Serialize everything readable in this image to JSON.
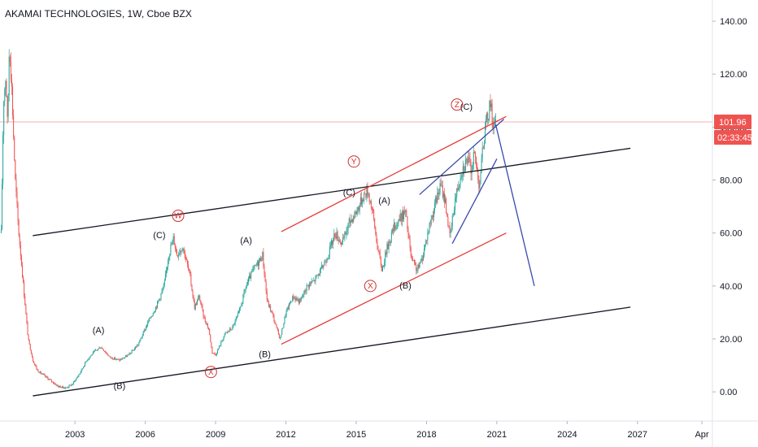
{
  "chart_data": {
    "type": "candlestick",
    "title": "AKAMAI TECHNOLOGIES, 1W, Cboe BZX",
    "symbol": "AKAMAI TECHNOLOGIES",
    "interval": "1W",
    "exchange": "Cboe BZX",
    "xlim": [
      1999.8,
      2030.2
    ],
    "ylim": [
      -11,
      148
    ],
    "y_ticks": [
      0,
      20,
      40,
      60,
      80,
      100,
      120,
      140
    ],
    "y_tick_labels": [
      "0.00",
      "20.00",
      "40.00",
      "60.00",
      "80.00",
      "100.00",
      "120.00",
      "140.00"
    ],
    "x_ticks": [
      2003,
      2006,
      2009,
      2012,
      2015,
      2018,
      2021,
      2024,
      2027,
      2029.75
    ],
    "x_tick_labels": [
      "2003",
      "2006",
      "2009",
      "2012",
      "2015",
      "2018",
      "2021",
      "2024",
      "2027",
      "Apr"
    ],
    "price_anchors": [
      [
        1999.85,
        60
      ],
      [
        1999.95,
        110
      ],
      [
        2000.05,
        120
      ],
      [
        2000.12,
        100
      ],
      [
        2000.2,
        132
      ],
      [
        2000.3,
        115
      ],
      [
        2000.45,
        80
      ],
      [
        2000.6,
        60
      ],
      [
        2000.8,
        40
      ],
      [
        2001.0,
        20
      ],
      [
        2001.2,
        12
      ],
      [
        2001.4,
        8
      ],
      [
        2001.7,
        6
      ],
      [
        2002.0,
        4
      ],
      [
        2002.3,
        2
      ],
      [
        2002.6,
        1.5
      ],
      [
        2002.9,
        3
      ],
      [
        2003.2,
        7
      ],
      [
        2003.5,
        12
      ],
      [
        2003.8,
        15
      ],
      [
        2004.1,
        17
      ],
      [
        2004.5,
        13
      ],
      [
        2004.9,
        12
      ],
      [
        2005.3,
        14
      ],
      [
        2005.7,
        18
      ],
      [
        2006.1,
        26
      ],
      [
        2006.5,
        33
      ],
      [
        2006.8,
        40
      ],
      [
        2007.0,
        52
      ],
      [
        2007.2,
        58
      ],
      [
        2007.35,
        52
      ],
      [
        2007.6,
        55
      ],
      [
        2007.9,
        44
      ],
      [
        2008.1,
        32
      ],
      [
        2008.3,
        36
      ],
      [
        2008.5,
        28
      ],
      [
        2008.7,
        24
      ],
      [
        2008.85,
        15
      ],
      [
        2009.0,
        14
      ],
      [
        2009.2,
        18
      ],
      [
        2009.4,
        22
      ],
      [
        2009.7,
        24
      ],
      [
        2010.0,
        30
      ],
      [
        2010.3,
        40
      ],
      [
        2010.6,
        46
      ],
      [
        2010.9,
        50
      ],
      [
        2011.0,
        52
      ],
      [
        2011.2,
        34
      ],
      [
        2011.4,
        30
      ],
      [
        2011.6,
        24
      ],
      [
        2011.75,
        20
      ],
      [
        2012.0,
        30
      ],
      [
        2012.3,
        36
      ],
      [
        2012.6,
        34
      ],
      [
        2012.9,
        40
      ],
      [
        2013.2,
        42
      ],
      [
        2013.5,
        46
      ],
      [
        2013.8,
        52
      ],
      [
        2014.1,
        60
      ],
      [
        2014.4,
        56
      ],
      [
        2014.7,
        64
      ],
      [
        2015.0,
        68
      ],
      [
        2015.3,
        74
      ],
      [
        2015.5,
        76
      ],
      [
        2015.7,
        68
      ],
      [
        2015.9,
        55
      ],
      [
        2016.1,
        46
      ],
      [
        2016.3,
        54
      ],
      [
        2016.6,
        62
      ],
      [
        2016.9,
        66
      ],
      [
        2017.1,
        68
      ],
      [
        2017.35,
        50
      ],
      [
        2017.6,
        46
      ],
      [
        2017.8,
        50
      ],
      [
        2018.1,
        62
      ],
      [
        2018.4,
        72
      ],
      [
        2018.6,
        78
      ],
      [
        2018.8,
        72
      ],
      [
        2019.0,
        58
      ],
      [
        2019.2,
        72
      ],
      [
        2019.5,
        84
      ],
      [
        2019.75,
        88
      ],
      [
        2019.9,
        84
      ],
      [
        2020.05,
        90
      ],
      [
        2020.15,
        84
      ],
      [
        2020.25,
        78
      ],
      [
        2020.45,
        96
      ],
      [
        2020.6,
        104
      ],
      [
        2020.75,
        110
      ],
      [
        2020.85,
        99
      ],
      [
        2020.95,
        101.96
      ]
    ],
    "current_price": "101.96",
    "countdown": "02:33:45",
    "trendlines": [
      {
        "color": "#131722",
        "x": [
          2001.2,
          2026.7
        ],
        "y": [
          59,
          92
        ]
      },
      {
        "color": "#131722",
        "x": [
          2001.2,
          2026.7
        ],
        "y": [
          -1.5,
          32
        ]
      },
      {
        "color": "#e53935",
        "x": [
          2011.8,
          2021.4
        ],
        "y": [
          60.5,
          104
        ]
      },
      {
        "color": "#e53935",
        "x": [
          2011.8,
          2021.4
        ],
        "y": [
          18,
          60
        ]
      },
      {
        "color": "#3949ab",
        "x": [
          2017.7,
          2021.3
        ],
        "y": [
          74.5,
          103
        ]
      },
      {
        "color": "#3949ab",
        "x": [
          2019.1,
          2021.0
        ],
        "y": [
          56,
          88
        ]
      },
      {
        "color": "#3949ab",
        "x": [
          2020.95,
          2022.6
        ],
        "y": [
          101,
          40
        ]
      }
    ],
    "price_line_value": 101.96,
    "wave_labels": [
      {
        "text": "(A)",
        "x": 2004.0,
        "y": 23
      },
      {
        "text": "(B)",
        "x": 2004.9,
        "y": 2
      },
      {
        "text": "(C)",
        "x": 2006.6,
        "y": 59
      },
      {
        "text": "(A)",
        "x": 2010.3,
        "y": 57
      },
      {
        "text": "(B)",
        "x": 2011.1,
        "y": 14
      },
      {
        "text": "(C)",
        "x": 2014.7,
        "y": 75
      },
      {
        "text": "(A)",
        "x": 2016.2,
        "y": 72
      },
      {
        "text": "(B)",
        "x": 2017.1,
        "y": 40
      },
      {
        "text": "(C)",
        "x": 2019.7,
        "y": 107.5
      }
    ],
    "circled_labels": [
      {
        "text": "W",
        "x": 2007.4,
        "y": 66.5
      },
      {
        "text": "X",
        "x": 2008.8,
        "y": 7.5
      },
      {
        "text": "Y",
        "x": 2014.9,
        "y": 87
      },
      {
        "text": "X",
        "x": 2015.6,
        "y": 40
      },
      {
        "text": "Z",
        "x": 2019.3,
        "y": 108.5
      }
    ]
  }
}
